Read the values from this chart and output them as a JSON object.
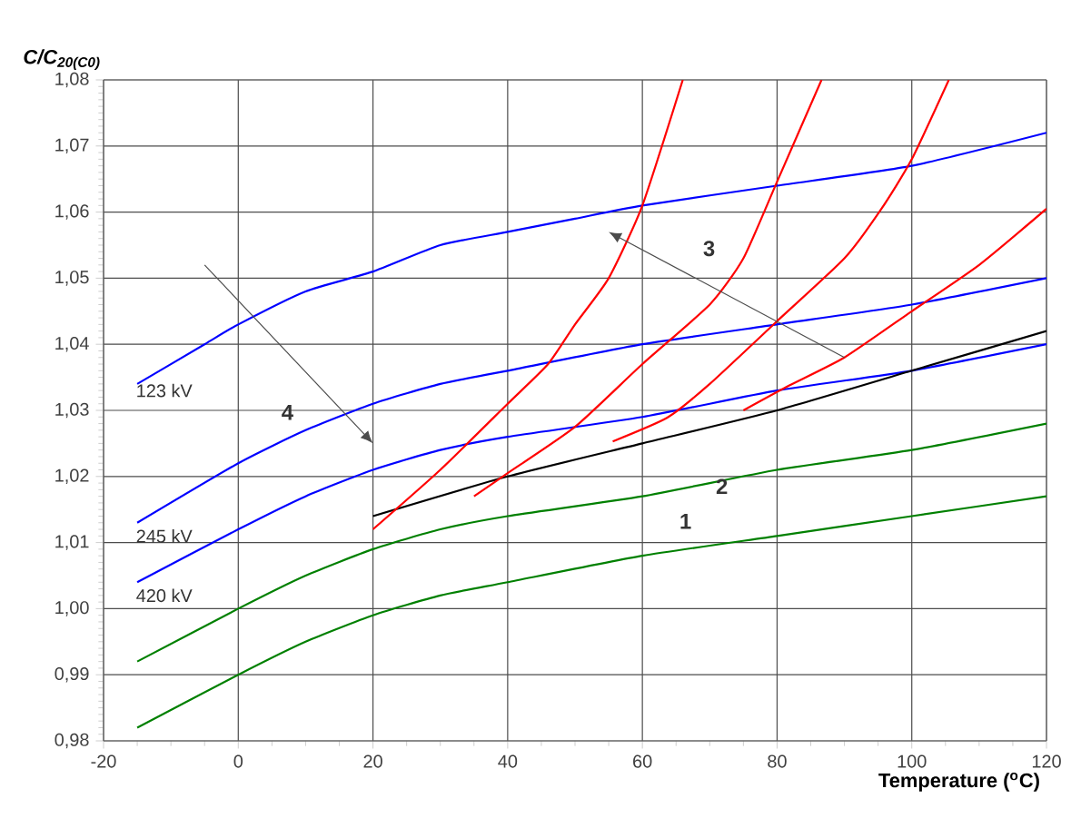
{
  "chart_data": {
    "type": "line",
    "xlabel": "Temperature ($^{o}$C)",
    "ylabel": "C/C$_{20(C0)}$",
    "xlim": [
      -20,
      120
    ],
    "xticks": [
      -20,
      0,
      20,
      40,
      60,
      80,
      100,
      120
    ],
    "ylim": [
      0.98,
      1.08
    ],
    "yticks": [
      {
        "value": 0.98,
        "label": "0,98"
      },
      {
        "value": 0.99,
        "label": "0,99"
      },
      {
        "value": 1.0,
        "label": "1,00"
      },
      {
        "value": 1.01,
        "label": "1,01"
      },
      {
        "value": 1.02,
        "label": "1,02"
      },
      {
        "value": 1.03,
        "label": "1,03"
      },
      {
        "value": 1.04,
        "label": "1,04"
      },
      {
        "value": 1.05,
        "label": "1,05"
      },
      {
        "value": 1.06,
        "label": "1,06"
      },
      {
        "value": 1.07,
        "label": "1,07"
      },
      {
        "value": 1.08,
        "label": "1,08"
      }
    ],
    "grid": true,
    "marker": "none",
    "line_style": "solid",
    "series": [
      {
        "color": "#0000ff",
        "x": [
          -15,
          -5,
          0,
          10,
          20,
          30,
          40,
          50,
          60,
          80,
          100,
          120
        ],
        "values": [
          1.034,
          1.04,
          1.043,
          1.048,
          1.051,
          1.055,
          1.057,
          1.059,
          1.061,
          1.064,
          1.067,
          1.072
        ]
      },
      {
        "color": "#0000ff",
        "x": [
          -15,
          0,
          10,
          20,
          30,
          40,
          60,
          80,
          100,
          120
        ],
        "values": [
          1.013,
          1.022,
          1.027,
          1.031,
          1.034,
          1.036,
          1.04,
          1.043,
          1.046,
          1.05
        ]
      },
      {
        "color": "#0000ff",
        "x": [
          -15,
          0,
          10,
          20,
          30,
          40,
          60,
          80,
          100,
          120
        ],
        "values": [
          1.004,
          1.012,
          1.017,
          1.021,
          1.024,
          1.026,
          1.029,
          1.033,
          1.036,
          1.04
        ]
      },
      {
        "color": "#008000",
        "x": [
          -15,
          0,
          10,
          20,
          30,
          40,
          60,
          80,
          100,
          120
        ],
        "values": [
          0.992,
          1.0,
          1.005,
          1.009,
          1.012,
          1.014,
          1.017,
          1.021,
          1.024,
          1.028
        ]
      },
      {
        "color": "#008000",
        "x": [
          -15,
          0,
          10,
          20,
          30,
          40,
          60,
          80,
          100,
          120
        ],
        "values": [
          0.982,
          0.99,
          0.995,
          0.999,
          1.002,
          1.004,
          1.008,
          1.011,
          1.014,
          1.017
        ]
      },
      {
        "color": "#000000",
        "x": [
          20,
          40,
          60,
          80,
          100,
          120
        ],
        "values": [
          1.014,
          1.02,
          1.025,
          1.03,
          1.036,
          1.042
        ]
      },
      {
        "color": "#ff0000",
        "x": [
          20,
          30,
          40,
          46,
          50,
          55,
          60,
          66
        ],
        "values": [
          1.012,
          1.021,
          1.031,
          1.037,
          1.043,
          1.05,
          1.061,
          1.08
        ]
      },
      {
        "color": "#ff0000",
        "x": [
          35,
          40,
          50,
          60,
          70,
          75,
          80,
          86.6
        ],
        "values": [
          1.017,
          1.0205,
          1.0275,
          1.037,
          1.046,
          1.053,
          1.0646,
          1.08
        ]
      },
      {
        "color": "#ff0000",
        "x": [
          55.6,
          63.7,
          70,
          80,
          90,
          95.5,
          100,
          105.5
        ],
        "values": [
          1.0253,
          1.0289,
          1.034,
          1.0435,
          1.053,
          1.0605,
          1.068,
          1.08
        ]
      },
      {
        "color": "#ff0000",
        "x": [
          75,
          81.5,
          90,
          100,
          110,
          120
        ],
        "values": [
          1.03,
          1.0336,
          1.038,
          1.045,
          1.052,
          1.0605
        ]
      }
    ],
    "annotations": [
      "123 kV",
      "245 kV",
      "420 kV",
      "1",
      "2",
      "3",
      "4"
    ]
  }
}
